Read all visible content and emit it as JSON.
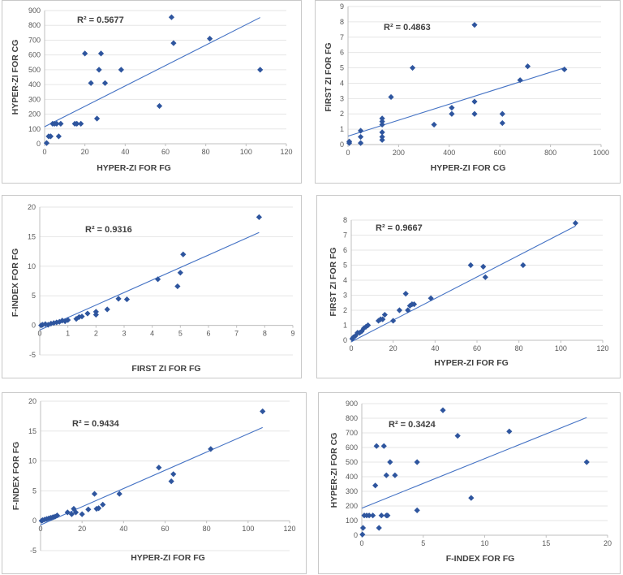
{
  "colors": {
    "marker": "#2e559e",
    "trend": "#4472c4",
    "axis": "#bfbfbf",
    "text": "#404040"
  },
  "chart_data": [
    {
      "type": "scatter",
      "xlabel": "HYPER-ZI FOR FG",
      "ylabel": "HYPER-ZI FOR CG",
      "r2_label": "R² = 0.5677",
      "xlim": [
        0,
        120
      ],
      "xticks": [
        "0",
        "20",
        "40",
        "60",
        "80",
        "100",
        "120"
      ],
      "xtick_values": [
        0,
        20,
        40,
        60,
        80,
        100,
        120
      ],
      "ylim": [
        0,
        900
      ],
      "yticks": [
        "0",
        "100",
        "200",
        "300",
        "400",
        "500",
        "600",
        "700",
        "800",
        "900"
      ],
      "ytick_values": [
        0,
        100,
        200,
        300,
        400,
        500,
        600,
        700,
        800,
        900
      ],
      "x": [
        1,
        2,
        3,
        4,
        5,
        6,
        7,
        8,
        15,
        16,
        18,
        20,
        23,
        26,
        27,
        28,
        30,
        38,
        57,
        63,
        64,
        82,
        107
      ],
      "y": [
        5,
        50,
        50,
        135,
        135,
        135,
        50,
        135,
        135,
        135,
        135,
        610,
        410,
        170,
        500,
        610,
        410,
        500,
        255,
        855,
        680,
        710,
        500
      ],
      "trendline": {
        "x": [
          0,
          107
        ],
        "y": [
          115,
          853
        ]
      }
    },
    {
      "type": "scatter",
      "xlabel": "HYPER-ZI FOR CG",
      "ylabel": "FIRST ZI FOR FG",
      "r2_label": "R² = 0.4863",
      "xlim": [
        0,
        1000
      ],
      "xticks": [
        "0",
        "200",
        "400",
        "600",
        "800",
        "1000"
      ],
      "xtick_values": [
        0,
        200,
        400,
        600,
        800,
        1000
      ],
      "ylim": [
        0,
        9
      ],
      "yticks": [
        "0",
        "1",
        "2",
        "3",
        "4",
        "5",
        "6",
        "7",
        "8",
        "9"
      ],
      "ytick_values": [
        0,
        1,
        2,
        3,
        4,
        5,
        6,
        7,
        8,
        9
      ],
      "x": [
        5,
        5,
        50,
        50,
        50,
        135,
        135,
        135,
        135,
        135,
        135,
        170,
        255,
        340,
        410,
        410,
        500,
        500,
        500,
        610,
        610,
        680,
        710,
        855
      ],
      "y": [
        0.1,
        0.2,
        0.1,
        0.5,
        0.9,
        0.3,
        0.5,
        0.8,
        1.3,
        1.5,
        1.7,
        3.1,
        5.0,
        1.3,
        2.0,
        2.4,
        2.0,
        2.8,
        7.8,
        1.4,
        2.0,
        4.2,
        5.1,
        4.9
      ],
      "trendline": {
        "x": [
          0,
          855
        ],
        "y": [
          0.55,
          5.0
        ]
      }
    },
    {
      "type": "scatter",
      "xlabel": "FIRST ZI FOR FG",
      "ylabel": "F-INDEX FOR FG",
      "r2_label": "R² = 0.9316",
      "xlim": [
        0,
        9
      ],
      "xticks": [
        "0",
        "1",
        "2",
        "3",
        "4",
        "5",
        "6",
        "7",
        "8",
        "9"
      ],
      "xtick_values": [
        0,
        1,
        2,
        3,
        4,
        5,
        6,
        7,
        8,
        9
      ],
      "ylim": [
        -5,
        20
      ],
      "yticks": [
        "-5",
        "0",
        "5",
        "10",
        "15",
        "20"
      ],
      "ytick_values": [
        -5,
        0,
        5,
        10,
        15,
        20
      ],
      "x": [
        0.05,
        0.1,
        0.2,
        0.3,
        0.4,
        0.5,
        0.6,
        0.7,
        0.8,
        0.9,
        1.0,
        1.3,
        1.4,
        1.5,
        1.7,
        2.0,
        2.0,
        2.4,
        2.8,
        3.1,
        4.2,
        4.9,
        5.0,
        5.1,
        7.8
      ],
      "y": [
        0.0,
        0.1,
        0.2,
        0.1,
        0.3,
        0.4,
        0.5,
        0.6,
        0.8,
        0.7,
        0.9,
        1.1,
        1.4,
        1.5,
        2.0,
        1.8,
        2.3,
        2.7,
        4.5,
        4.4,
        7.8,
        6.6,
        8.9,
        12.0,
        18.3
      ],
      "trendline": {
        "x": [
          0,
          7.8
        ],
        "y": [
          -0.8,
          15.7
        ]
      }
    },
    {
      "type": "scatter",
      "xlabel": "HYPER-ZI FOR FG",
      "ylabel": "FIRST ZI FOR FG",
      "r2_label": "R² = 0.9667",
      "xlim": [
        0,
        120
      ],
      "xticks": [
        "0",
        "20",
        "40",
        "60",
        "80",
        "100",
        "120"
      ],
      "xtick_values": [
        0,
        20,
        40,
        60,
        80,
        100,
        120
      ],
      "ylim": [
        0,
        8
      ],
      "yticks": [
        "0",
        "1",
        "2",
        "3",
        "4",
        "5",
        "6",
        "7",
        "8"
      ],
      "ytick_values": [
        0,
        1,
        2,
        3,
        4,
        5,
        6,
        7,
        8
      ],
      "x": [
        0.5,
        1,
        2,
        3,
        4,
        5,
        6,
        7,
        8,
        13,
        14,
        15,
        16,
        20,
        23,
        26,
        27,
        28,
        29,
        30,
        38,
        57,
        63,
        64,
        82,
        107
      ],
      "y": [
        0.1,
        0.2,
        0.3,
        0.5,
        0.5,
        0.6,
        0.8,
        0.9,
        1.0,
        1.3,
        1.4,
        1.4,
        1.7,
        1.3,
        2.0,
        3.1,
        2.0,
        2.3,
        2.4,
        2.4,
        2.8,
        5.0,
        4.9,
        4.2,
        5.0,
        7.8
      ],
      "trendline": {
        "x": [
          0,
          107
        ],
        "y": [
          -0.1,
          7.6
        ]
      }
    },
    {
      "type": "scatter",
      "xlabel": "HYPER-ZI FOR FG",
      "ylabel": "F-INDEX FOR FG",
      "r2_label": "R² = 0.9434",
      "xlim": [
        0,
        120
      ],
      "xticks": [
        "0",
        "20",
        "40",
        "60",
        "80",
        "100",
        "120"
      ],
      "xtick_values": [
        0,
        20,
        40,
        60,
        80,
        100,
        120
      ],
      "ylim": [
        -5,
        20
      ],
      "yticks": [
        "-5",
        "0",
        "5",
        "10",
        "15",
        "20"
      ],
      "ytick_values": [
        -5,
        0,
        5,
        10,
        15,
        20
      ],
      "x": [
        0.5,
        1,
        2,
        3,
        4,
        5,
        6,
        7,
        8,
        13,
        15,
        16,
        17,
        20,
        23,
        26,
        27,
        28,
        30,
        38,
        57,
        63,
        64,
        82,
        107
      ],
      "y": [
        0,
        0.1,
        0.2,
        0.3,
        0.4,
        0.5,
        0.6,
        0.7,
        0.9,
        1.4,
        1.1,
        2.0,
        1.4,
        1.1,
        1.9,
        4.5,
        2.0,
        2.1,
        2.7,
        4.5,
        8.9,
        6.6,
        7.8,
        12.0,
        18.3
      ],
      "trendline": {
        "x": [
          0,
          107
        ],
        "y": [
          -0.7,
          15.6
        ]
      }
    },
    {
      "type": "scatter",
      "xlabel": "F-INDEX FOR FG",
      "ylabel": "HYPER-ZI FOR CG",
      "r2_label": "R² = 0.3424",
      "xlim": [
        0,
        20
      ],
      "xticks": [
        "0",
        "5",
        "10",
        "15",
        "20"
      ],
      "xtick_values": [
        0,
        5,
        10,
        15,
        20
      ],
      "ylim": [
        0,
        900
      ],
      "yticks": [
        "0",
        "100",
        "200",
        "300",
        "400",
        "500",
        "600",
        "700",
        "800",
        "900"
      ],
      "ytick_values": [
        0,
        100,
        200,
        300,
        400,
        500,
        600,
        700,
        800,
        900
      ],
      "x": [
        0.05,
        0.1,
        0.2,
        0.4,
        0.6,
        0.9,
        1.1,
        1.2,
        1.4,
        1.6,
        1.8,
        2.0,
        2.0,
        2.1,
        2.3,
        2.7,
        4.5,
        4.5,
        6.6,
        7.8,
        8.9,
        12.0,
        18.3
      ],
      "y": [
        5,
        50,
        135,
        135,
        135,
        135,
        340,
        610,
        50,
        135,
        610,
        410,
        135,
        135,
        500,
        410,
        170,
        500,
        855,
        680,
        255,
        710,
        500
      ],
      "trendline": {
        "x": [
          0,
          18.3
        ],
        "y": [
          185,
          805
        ]
      }
    }
  ]
}
